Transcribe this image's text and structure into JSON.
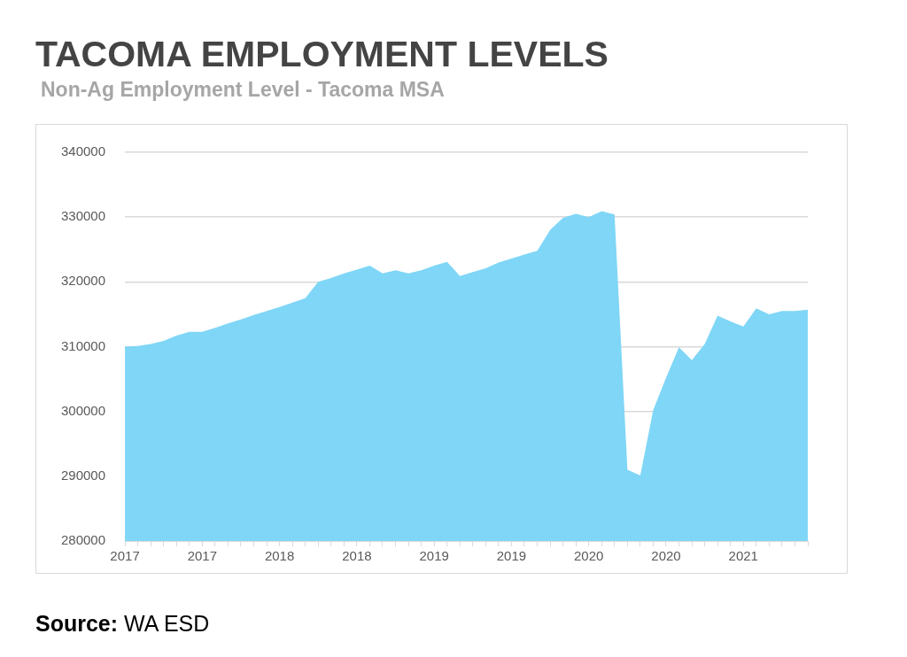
{
  "chart_data": {
    "type": "area",
    "title": "TACOMA EMPLOYMENT LEVELS",
    "subtitle": "Non-Ag Employment Level - Tacoma MSA",
    "categories": [
      "2017",
      null,
      null,
      null,
      null,
      null,
      "2017",
      null,
      null,
      null,
      null,
      null,
      "2018",
      null,
      null,
      null,
      null,
      null,
      "2018",
      null,
      null,
      null,
      null,
      null,
      "2019",
      null,
      null,
      null,
      null,
      null,
      "2019",
      null,
      null,
      null,
      null,
      null,
      "2020",
      null,
      null,
      null,
      null,
      null,
      "2020",
      null,
      null,
      null,
      null,
      null,
      "2021",
      null,
      null,
      null,
      null,
      null
    ],
    "series": [
      {
        "color": "#7fd6f7",
        "values": [
          310000,
          310100,
          310400,
          310900,
          311700,
          312300,
          312300,
          312900,
          313600,
          314200,
          314900,
          315500,
          316100,
          316800,
          317500,
          320000,
          320600,
          321300,
          321900,
          322500,
          321300,
          321800,
          321300,
          321800,
          322500,
          323100,
          320900,
          321500,
          322100,
          323000,
          323600,
          324200,
          324800,
          328000,
          329900,
          330500,
          330000,
          330900,
          330400,
          291000,
          290100,
          300200,
          305200,
          309900,
          307900,
          310400,
          314800,
          313900,
          313100,
          315900,
          315000,
          315500,
          315500,
          315700
        ]
      }
    ],
    "ylim": [
      280000,
      340000
    ],
    "yticks": [
      280000,
      290000,
      300000,
      310000,
      320000,
      330000,
      340000
    ],
    "grid": "y",
    "legend": false,
    "annotations": [
      "Source: WA ESD"
    ]
  }
}
